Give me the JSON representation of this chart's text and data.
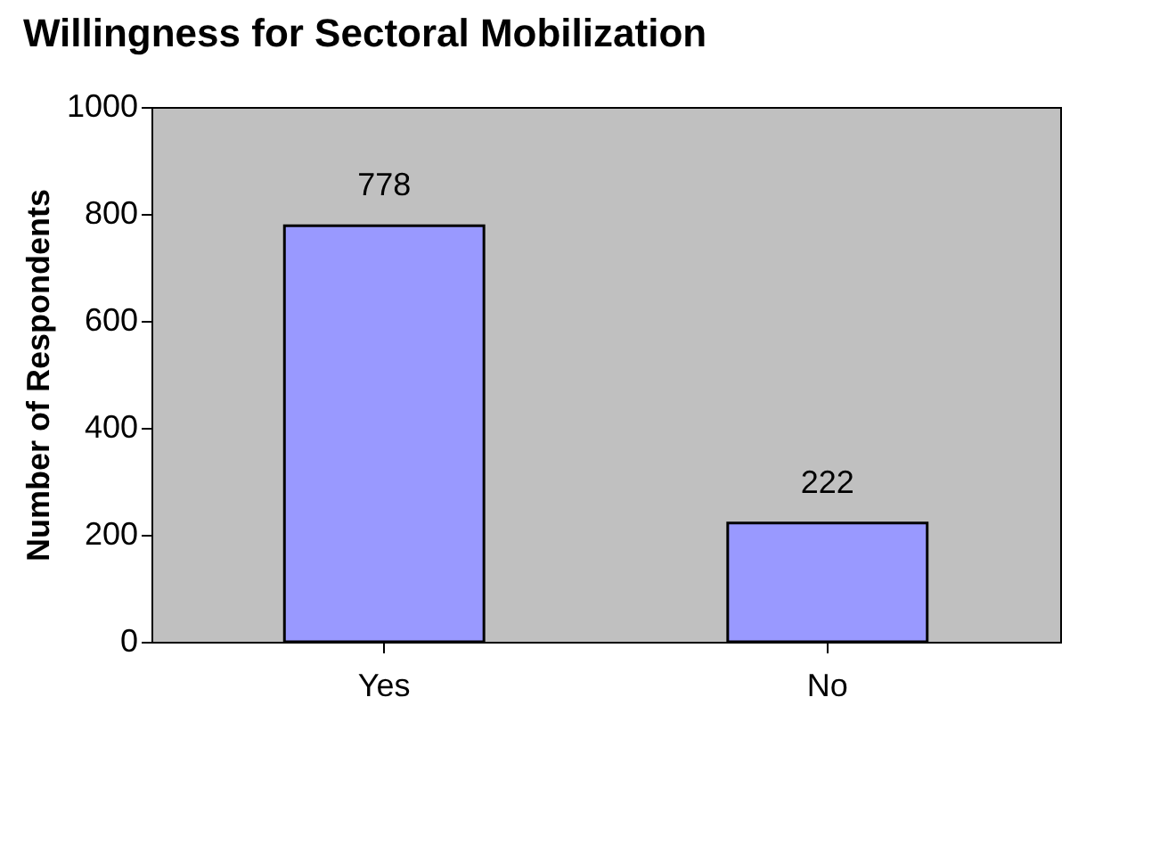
{
  "chart_data": {
    "type": "bar",
    "title": "Willingness for Sectoral Mobilization",
    "ylabel": "Number of Respondents",
    "categories": [
      "Yes",
      "No"
    ],
    "series": [
      {
        "color": "#9999ff",
        "values": [
          778,
          222
        ]
      }
    ],
    "ylim": [
      0,
      1000
    ],
    "yticks": [
      0,
      200,
      400,
      600,
      800,
      1000
    ],
    "grid": false,
    "data_labels": true
  }
}
